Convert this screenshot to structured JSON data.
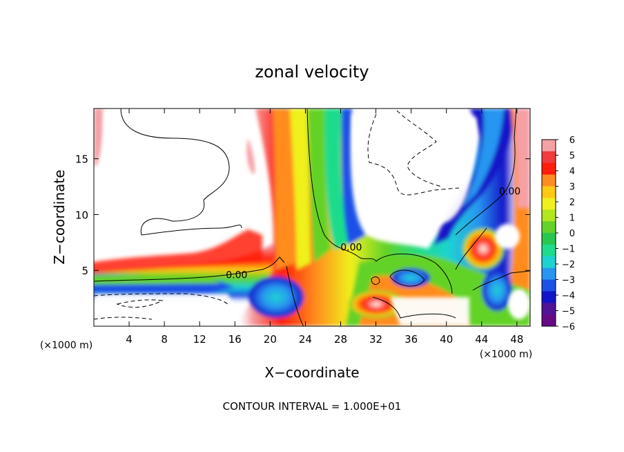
{
  "chart_data": {
    "type": "heatmap",
    "title": "zonal velocity",
    "xlabel": "X−coordinate",
    "ylabel": "Z−coordinate",
    "x_unit": "(×1000 m)",
    "y_unit": "(×1000 m)",
    "xlim": [
      0,
      49.5
    ],
    "ylim": [
      0,
      19.5
    ],
    "x_ticks": [
      "4",
      "8",
      "12",
      "16",
      "20",
      "24",
      "28",
      "32",
      "36",
      "40",
      "44",
      "48"
    ],
    "y_ticks": [
      "5",
      "10",
      "15"
    ],
    "colorbar": {
      "range": [
        -6,
        6
      ],
      "ticks": [
        "6",
        "5",
        "4",
        "3",
        "2",
        "1",
        "0",
        "−1",
        "−2",
        "−3",
        "−4",
        "−5",
        "−6"
      ],
      "colors": [
        "#f5a0a5",
        "#f03c3c",
        "#ff1e0a",
        "#ff8c1e",
        "#ffc814",
        "#f0f01e",
        "#b4e61e",
        "#64d228",
        "#28c850",
        "#1edc8c",
        "#1ed2d2",
        "#2896f0",
        "#1e50e6",
        "#1414c8",
        "#501496",
        "#640a82"
      ]
    },
    "contour_label": "0.00",
    "contour_labels": [
      {
        "text": "0.00",
        "x": 16.2,
        "z": 4.6
      },
      {
        "text": "0.00",
        "x": 29.2,
        "z": 7.1
      },
      {
        "text": "0.00",
        "x": 47.2,
        "z": 12.1
      }
    ],
    "note": "CONTOUR INTERVAL =  1.000E+01"
  },
  "colors": {
    "background": "#ffffff",
    "axes": "#000000"
  }
}
